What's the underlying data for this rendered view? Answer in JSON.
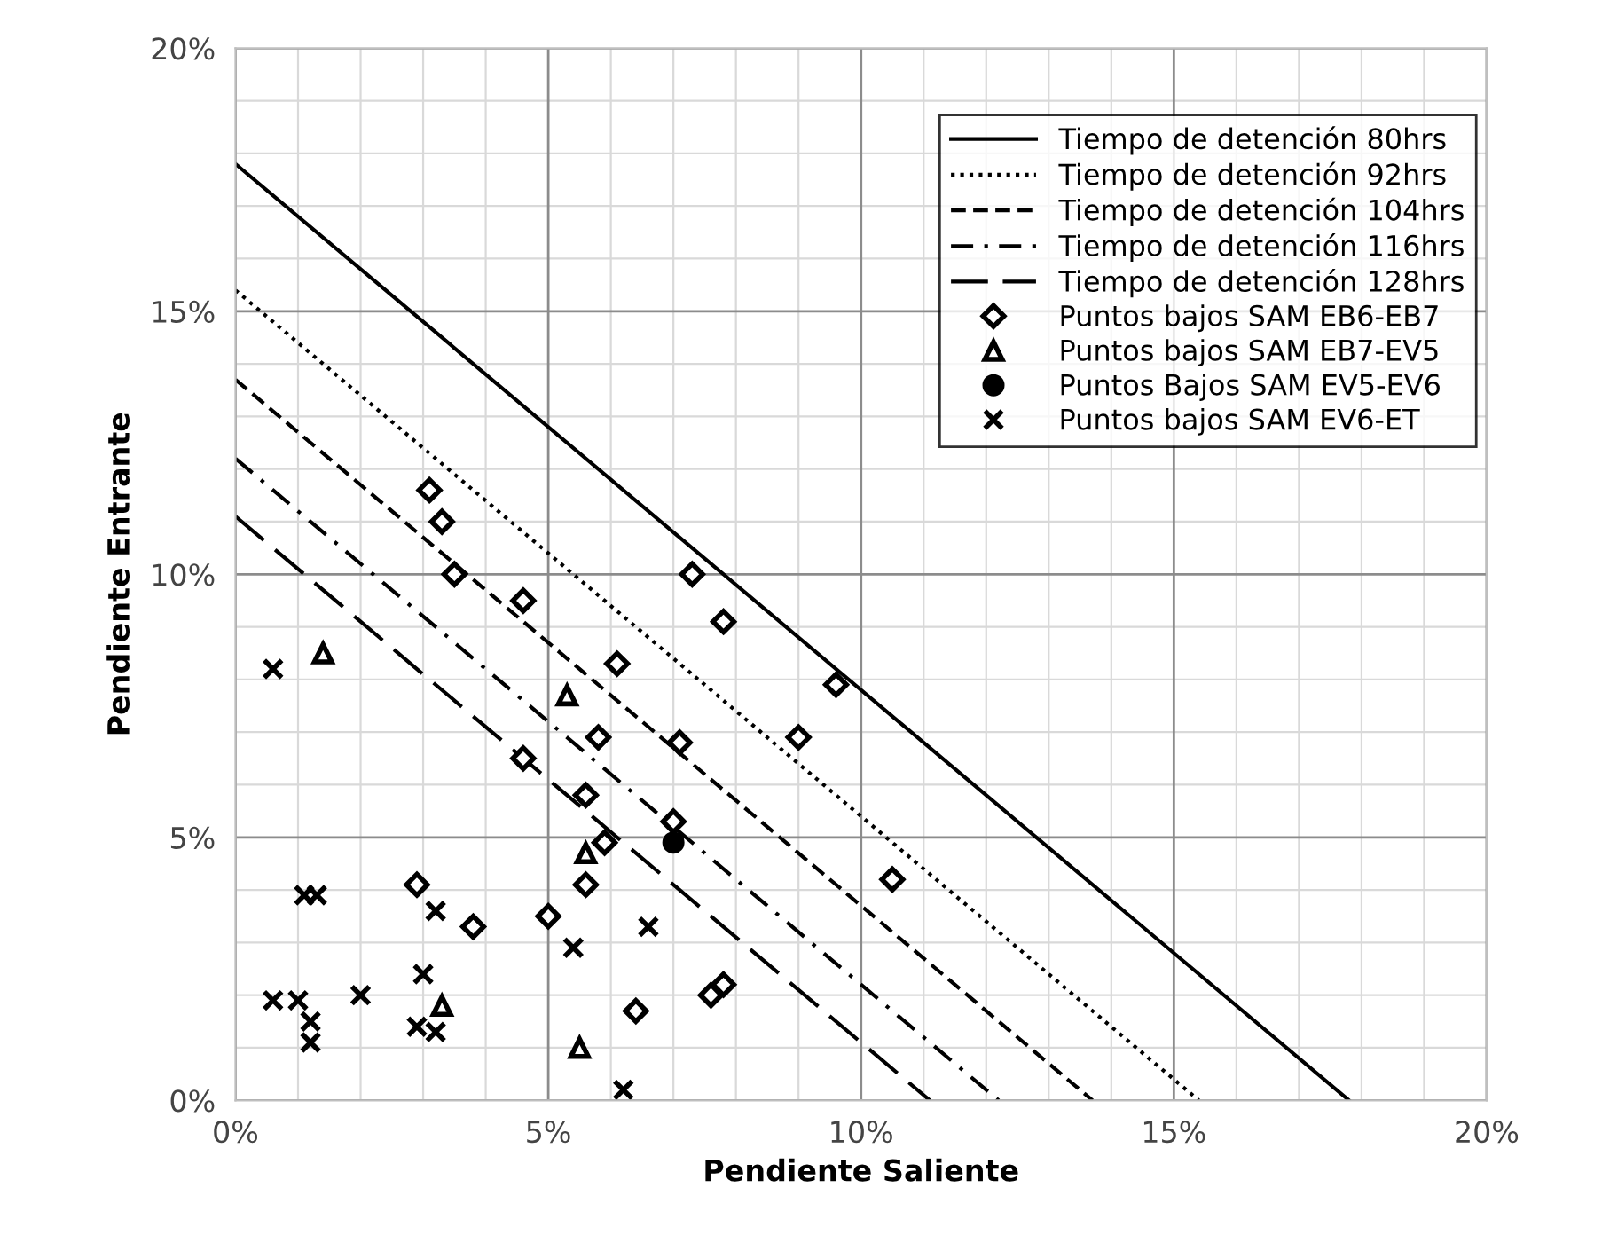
{
  "chart_data": {
    "type": "scatter",
    "xlabel": "Pendiente Saliente",
    "ylabel": "Pendiente Entrante",
    "xlim": [
      0,
      20
    ],
    "ylim": [
      0,
      20
    ],
    "xticks": [
      {
        "value": 0,
        "label": "0%"
      },
      {
        "value": 5,
        "label": "5%"
      },
      {
        "value": 10,
        "label": "10%"
      },
      {
        "value": 15,
        "label": "15%"
      },
      {
        "value": 20,
        "label": "20%"
      }
    ],
    "yticks": [
      {
        "value": 0,
        "label": "0%"
      },
      {
        "value": 5,
        "label": "5%"
      },
      {
        "value": 10,
        "label": "10%"
      },
      {
        "value": 15,
        "label": "15%"
      },
      {
        "value": 20,
        "label": "20%"
      }
    ],
    "grid": true,
    "legend": "top right",
    "series": [
      {
        "name": "Tiempo de detención 80hrs",
        "type": "line",
        "line_style": "solid",
        "marker": "none",
        "color": "#000000",
        "x": [
          0,
          17.8
        ],
        "values": [
          17.8,
          0
        ]
      },
      {
        "name": "Tiempo de detención 92hrs",
        "type": "line",
        "line_style": "dotted",
        "marker": "none",
        "color": "#000000",
        "x": [
          0,
          15.4
        ],
        "values": [
          15.4,
          0
        ]
      },
      {
        "name": "Tiempo de detención 104hrs",
        "type": "line",
        "line_style": "dashed",
        "marker": "none",
        "color": "#000000",
        "x": [
          0,
          13.7
        ],
        "values": [
          13.7,
          0
        ]
      },
      {
        "name": "Tiempo de detención 116hrs",
        "type": "line",
        "line_style": "dashdot",
        "marker": "none",
        "color": "#000000",
        "x": [
          0,
          12.2
        ],
        "values": [
          12.2,
          0
        ]
      },
      {
        "name": "Tiempo de detención 128hrs",
        "type": "line",
        "line_style": "longdash",
        "marker": "none",
        "color": "#000000",
        "x": [
          0,
          11.1
        ],
        "values": [
          11.1,
          0
        ]
      },
      {
        "name": "Puntos bajos SAM EB6-EB7",
        "marker": "diamond",
        "color": "#000000",
        "x": [
          3.1,
          3.3,
          3.5,
          4.6,
          7.3,
          7.8,
          6.1,
          5.8,
          7.1,
          4.6,
          5.6,
          7.0,
          5.9,
          5.6,
          2.9,
          5.0,
          3.8,
          6.4,
          7.6,
          7.8,
          9.6,
          9.0,
          10.5
        ],
        "values": [
          11.6,
          11.0,
          10.0,
          9.5,
          10.0,
          9.1,
          8.3,
          6.9,
          6.8,
          6.5,
          5.8,
          5.3,
          4.9,
          4.1,
          4.1,
          3.5,
          3.3,
          1.7,
          2.0,
          2.2,
          7.9,
          6.9,
          4.2
        ]
      },
      {
        "name": "Puntos bajos SAM EB7-EV5",
        "marker": "triangle",
        "color": "#000000",
        "x": [
          1.4,
          5.3,
          5.6,
          3.3,
          5.5
        ],
        "values": [
          8.5,
          7.7,
          4.7,
          1.8,
          1.0
        ]
      },
      {
        "name": "Puntos Bajos SAM EV5-EV6",
        "marker": "circle",
        "color": "#000000",
        "x": [
          7.0
        ],
        "values": [
          4.9
        ]
      },
      {
        "name": "Puntos bajos SAM EV6-ET",
        "marker": "cross",
        "color": "#000000",
        "x": [
          0.6,
          1.1,
          1.3,
          3.2,
          5.4,
          6.6,
          3.0,
          2.0,
          0.6,
          1.0,
          1.2,
          1.2,
          2.9,
          3.2,
          6.2
        ],
        "values": [
          8.2,
          3.9,
          3.9,
          3.6,
          2.9,
          3.3,
          2.4,
          2.0,
          1.9,
          1.9,
          1.5,
          1.1,
          1.4,
          1.3,
          0.2
        ]
      }
    ]
  }
}
